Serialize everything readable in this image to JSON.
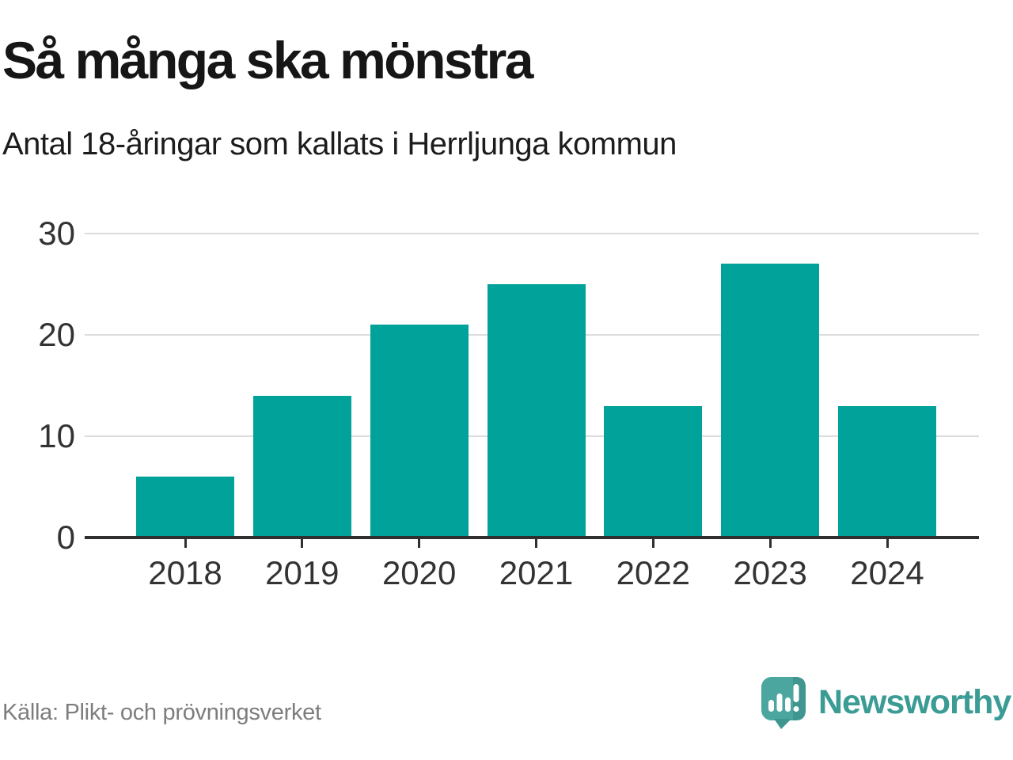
{
  "header": {
    "title": "Så många ska mönstra",
    "subtitle": "Antal 18-åringar som kallats i Herrljunga kommun"
  },
  "chart_data": {
    "type": "bar",
    "categories": [
      "2018",
      "2019",
      "2020",
      "2021",
      "2022",
      "2023",
      "2024"
    ],
    "values": [
      6,
      14,
      21,
      25,
      13,
      27,
      13
    ],
    "title": "Så många ska mönstra",
    "subtitle": "Antal 18-åringar som kallats i Herrljunga kommun",
    "xlabel": "",
    "ylabel": "",
    "ylim": [
      0,
      30
    ],
    "yticks": [
      0,
      10,
      20,
      30
    ],
    "grid": true,
    "legend": false,
    "bar_color": "#00a29a"
  },
  "footer": {
    "source": "Källa: Plikt- och prövningsverket",
    "brand": "Newsworthy"
  },
  "colors": {
    "bar": "#00a29a",
    "axis": "#2f2f2f",
    "gridline": "#dcdcdc",
    "tick_label": "#333333",
    "title": "#161616",
    "subtitle": "#1c1c1c",
    "source_text": "#7d7d7d",
    "brand_text": "#3a9c95",
    "logo_bubble": "#4ba69f",
    "logo_bubble_dark": "#3f958f"
  },
  "icons": {
    "newsworthy_icon": "speech-bubble-bar-chart-exclamation"
  }
}
